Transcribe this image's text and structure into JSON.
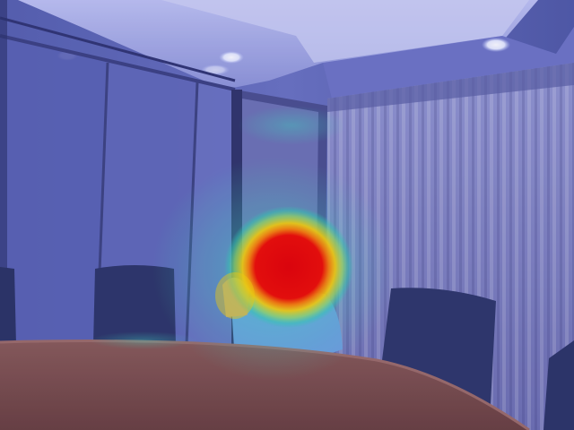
{
  "image": {
    "kind": "photo-with-attention-heatmap-overlay",
    "colors": {
      "heat_core": "#e80000",
      "heat_mid": "#ffd200",
      "heat_outer": "#2fd3b0",
      "wall_tint": "#5d66b4",
      "curtain_tint": "#8a8fc8",
      "table_wood": "#7a4b45"
    }
  }
}
